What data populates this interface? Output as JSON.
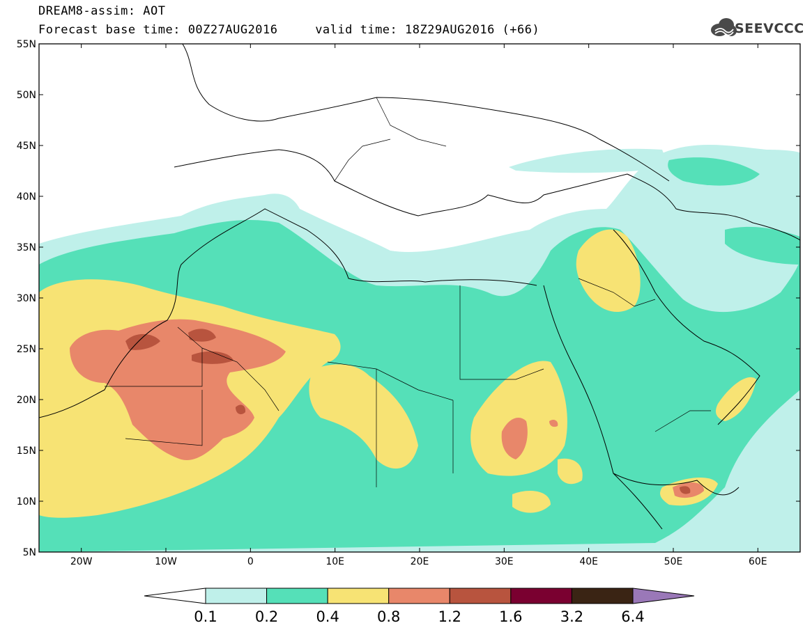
{
  "header": {
    "title_line1": "DREAM8-assim: AOT",
    "title_line2": "Forecast base time: 00Z27AUG2016     valid time: 18Z29AUG2016 (+66)",
    "logo_text": "SEEVCCC",
    "logo_icon": "cloud-logo-icon"
  },
  "map": {
    "projection": "lat-lon",
    "lon_range": [
      -25,
      65
    ],
    "lat_range": [
      5,
      55
    ],
    "lat_ticks": [
      "55N",
      "50N",
      "45N",
      "40N",
      "35N",
      "30N",
      "25N",
      "20N",
      "15N",
      "10N",
      "5N"
    ],
    "lon_ticks": [
      "20W",
      "10W",
      "0",
      "10E",
      "20E",
      "30E",
      "40E",
      "50E",
      "60E"
    ],
    "variable": "AOT"
  },
  "colorbar": {
    "labels": [
      "0.1",
      "0.2",
      "0.4",
      "0.8",
      "1.2",
      "1.6",
      "3.2",
      "6.4"
    ],
    "colors": [
      "#ffffff",
      "#bff0ea",
      "#55e0b8",
      "#f7e374",
      "#e8876a",
      "#b8543e",
      "#7a0030",
      "#3a2414",
      "#9a78b8"
    ]
  }
}
